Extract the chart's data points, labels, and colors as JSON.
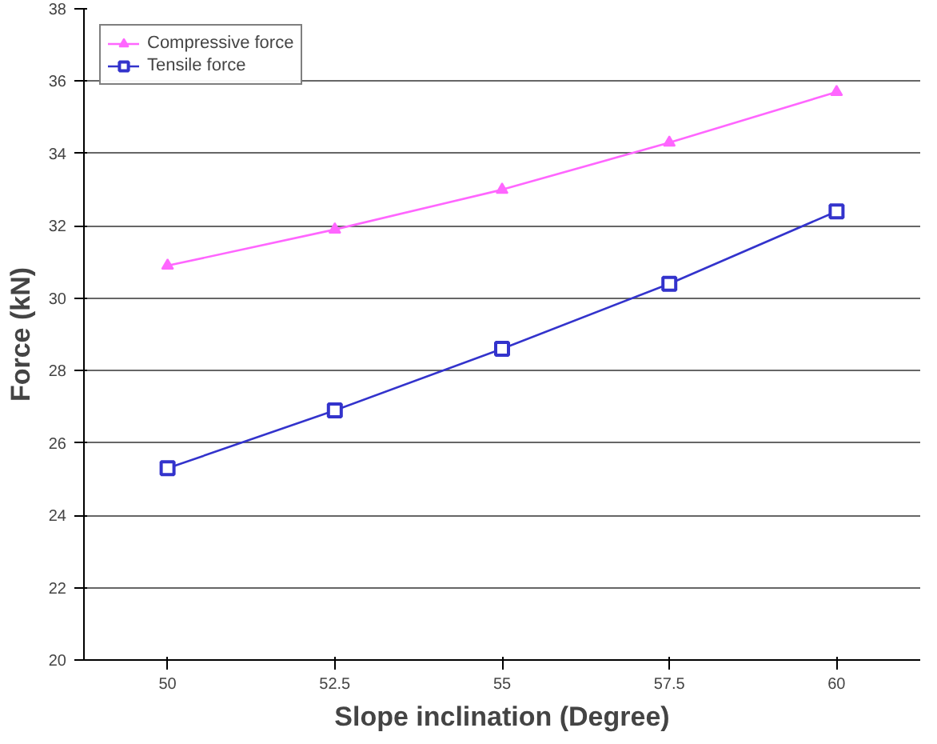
{
  "chart_data": {
    "type": "line",
    "xlabel": "Slope inclination (Degree)",
    "ylabel": "Force (kN)",
    "categories": [
      "50",
      "52.5",
      "55",
      "57.5",
      "60"
    ],
    "series": [
      {
        "name": "Compressive force",
        "color": "#ff66ff",
        "marker": "triangle",
        "values": [
          30.9,
          31.9,
          33.0,
          34.3,
          35.7
        ]
      },
      {
        "name": "Tensile force",
        "color": "#3333cc",
        "marker": "square",
        "values": [
          25.3,
          26.9,
          28.6,
          30.4,
          32.4
        ]
      }
    ],
    "ylim": [
      20,
      38
    ],
    "yticks": [
      20,
      22,
      24,
      26,
      28,
      30,
      32,
      34,
      36,
      38
    ],
    "grid": "y",
    "legend": "top left",
    "line_style": "solid"
  }
}
